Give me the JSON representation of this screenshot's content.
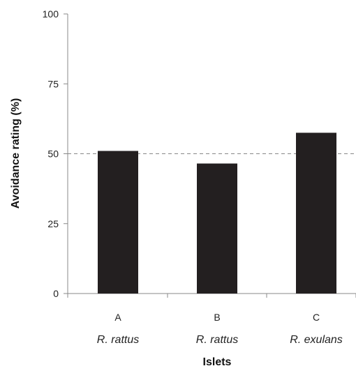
{
  "chart_data": {
    "type": "bar",
    "categories": [
      "A",
      "B",
      "C"
    ],
    "category_sublabels": [
      "R. rattus",
      "R. rattus",
      "R. exulans"
    ],
    "values": [
      51,
      46.5,
      57.5
    ],
    "xlabel": "Islets",
    "ylabel": "Avoidance rating (%)",
    "ylim": [
      0,
      100
    ],
    "yticks": [
      0,
      25,
      50,
      75,
      100
    ],
    "reference_line": 50,
    "grid": false,
    "bar_color": "#231f20",
    "reference_line_color": "#888888"
  }
}
